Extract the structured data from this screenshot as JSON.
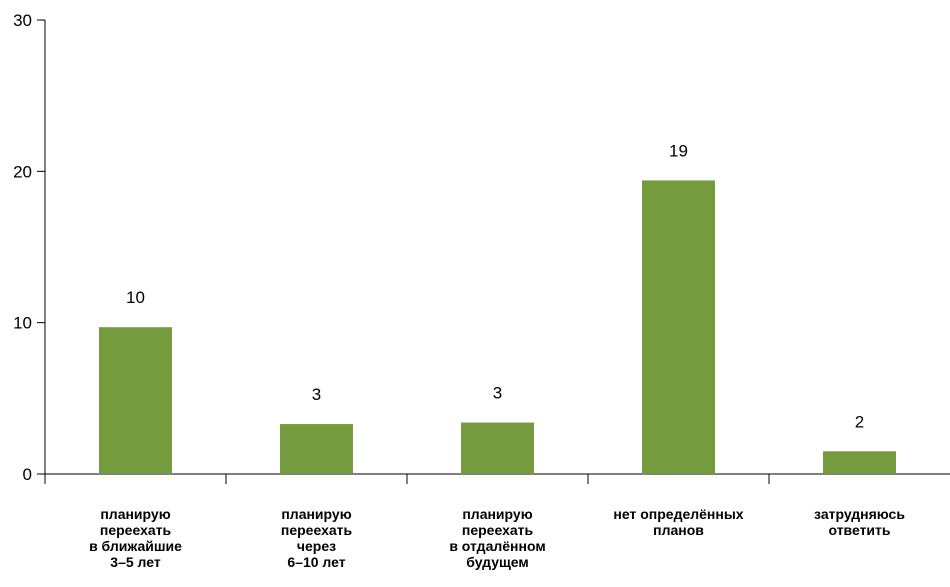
{
  "chart_data": {
    "type": "bar",
    "categories": [
      [
        "планирую",
        "переехать",
        "в ближайшие",
        "3–5 лет"
      ],
      [
        "планирую",
        "переехать",
        "через",
        "6–10 лет"
      ],
      [
        "планирую",
        "переехать",
        "в отдалённом",
        "будущем"
      ],
      [
        "нет определённых",
        "планов"
      ],
      [
        "затрудняюсь",
        "ответить"
      ]
    ],
    "values": [
      9.7,
      3.3,
      3.4,
      19.4,
      1.5
    ],
    "data_labels": [
      "10",
      "3",
      "3",
      "19",
      "2"
    ],
    "ylim": [
      0,
      30
    ],
    "yticks": [
      0,
      10,
      20,
      30
    ],
    "ytick_labels": [
      "0",
      "10",
      "20",
      "30"
    ],
    "title": "",
    "xlabel": "",
    "ylabel": "",
    "grid": false,
    "bar_color": "#769a3e",
    "axis_color": "#000000"
  }
}
